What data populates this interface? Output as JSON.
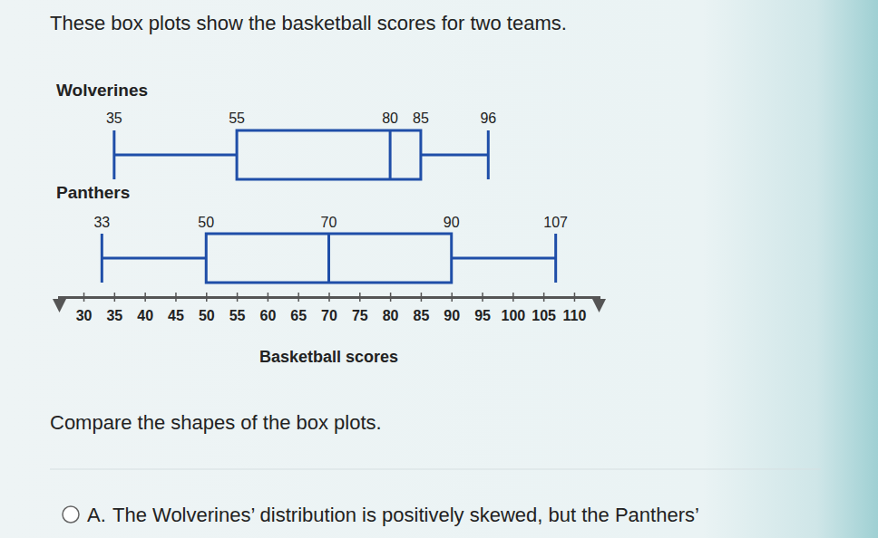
{
  "chart_data": {
    "type": "box",
    "title": "These box plots show the basketball scores for two teams.",
    "x_label": "Basketball scores",
    "series": [
      {
        "name": "Wolverines",
        "color": "#1f4ea8",
        "values": [
          35,
          55,
          80,
          85,
          96
        ]
      },
      {
        "name": "Panthers",
        "color": "#1f4ea8",
        "values": [
          33,
          50,
          70,
          90,
          107
        ]
      }
    ],
    "xlim": [
      26,
      114
    ],
    "xticks": [
      30,
      35,
      40,
      45,
      50,
      55,
      60,
      65,
      70,
      75,
      80,
      85,
      90,
      95,
      100,
      105,
      110
    ],
    "data_labels": true,
    "grid": false
  },
  "question": "Compare the shapes of the box plots.",
  "options": [
    {
      "letter": "A.",
      "text": "The Wolverines’ distribution is positively skewed, but the Panthers’"
    }
  ]
}
